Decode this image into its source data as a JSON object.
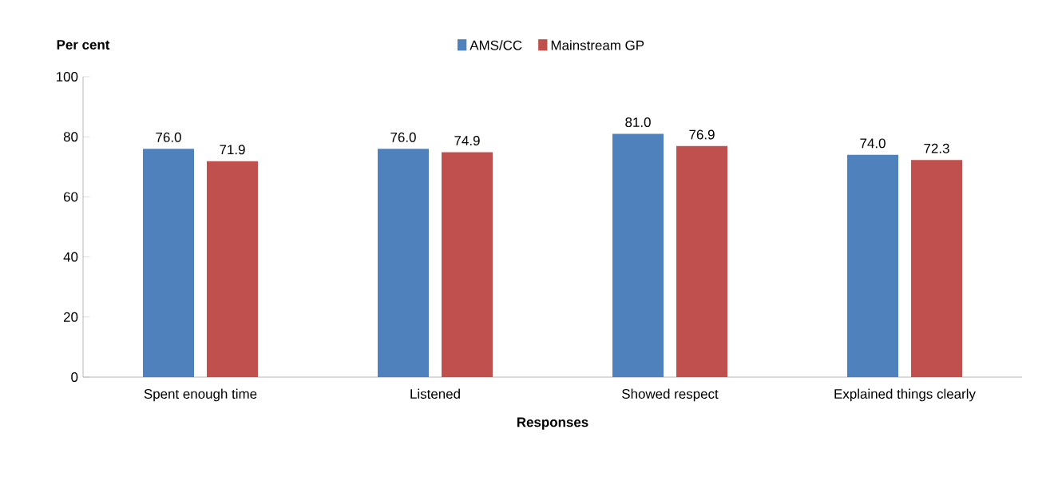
{
  "chart_data": {
    "type": "bar",
    "ylabel": "Per cent",
    "xlabel": "Responses",
    "categories": [
      "Spent enough time",
      "Listened",
      "Showed respect",
      "Explained things clearly"
    ],
    "series": [
      {
        "name": "AMS/CC",
        "color": "#4f81bd",
        "values": [
          76.0,
          76.0,
          81.0,
          74.0
        ],
        "value_labels": [
          "76.0",
          "76.0",
          "81.0",
          "74.0"
        ]
      },
      {
        "name": "Mainstream GP",
        "color": "#c0504d",
        "values": [
          71.9,
          74.9,
          76.9,
          72.3
        ],
        "value_labels": [
          "71.9",
          "74.9",
          "76.9",
          "72.3"
        ]
      }
    ],
    "ylim": [
      0,
      100
    ],
    "yticks": [
      0,
      20,
      40,
      60,
      80,
      100
    ],
    "legend": "top",
    "grid": false
  }
}
